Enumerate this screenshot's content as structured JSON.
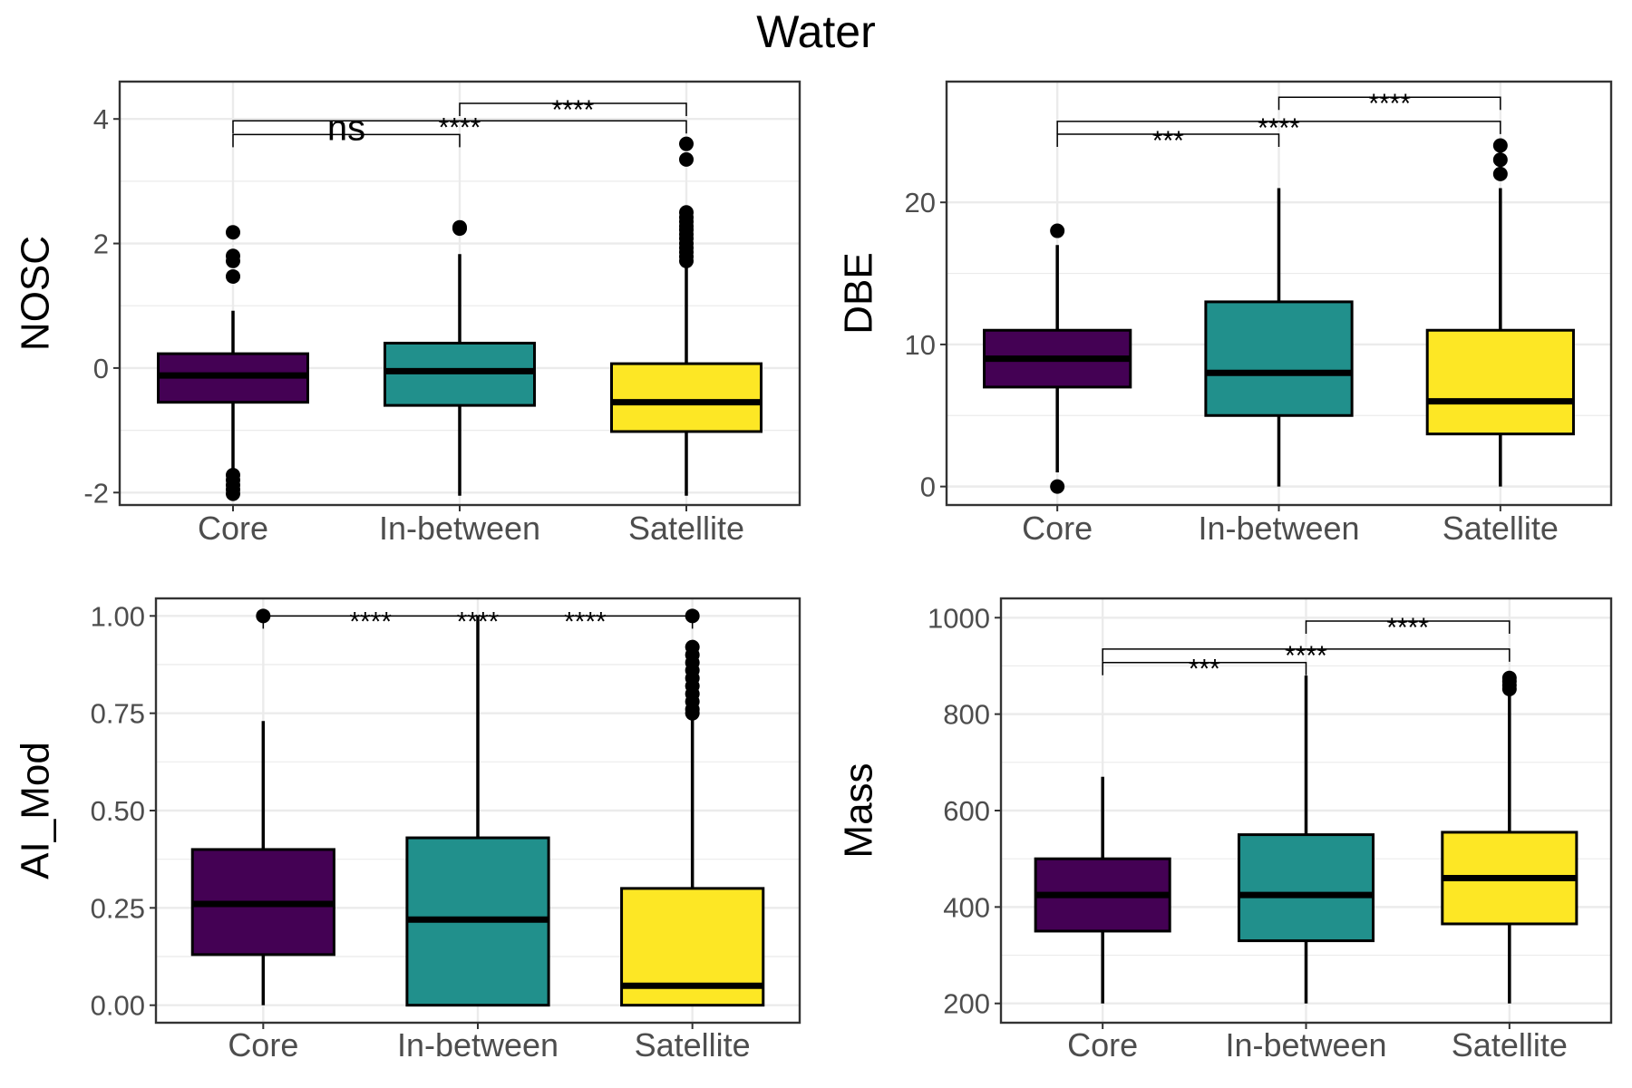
{
  "title": "Water",
  "colors": {
    "Core": "#440154",
    "In-between": "#21908C",
    "Satellite": "#FDE725",
    "grid": "#EBEBEB",
    "frame": "#333333"
  },
  "chart_data": [
    {
      "type": "boxplot",
      "ylabel": "NOSC",
      "xlabel": "",
      "categories": [
        "Core",
        "In-between",
        "Satellite"
      ],
      "ylim": [
        -2.2,
        4.6
      ],
      "yticks": [
        -2,
        0,
        2,
        4
      ],
      "ytick_labels": [
        "-2",
        "0",
        "2",
        "4"
      ],
      "grid": true,
      "boxes": [
        {
          "category": "Core",
          "q1": -0.55,
          "median": -0.12,
          "q3": 0.23,
          "whisker_low": -1.7,
          "whisker_high": 0.92,
          "outliers": [
            2.18,
            1.8,
            1.72,
            1.47,
            -1.72,
            -1.8,
            -1.88,
            -1.95,
            -2.02
          ]
        },
        {
          "category": "In-between",
          "q1": -0.6,
          "median": -0.05,
          "q3": 0.4,
          "whisker_low": -2.05,
          "whisker_high": 1.83,
          "outliers": [
            2.24,
            2.26
          ]
        },
        {
          "category": "Satellite",
          "q1": -1.02,
          "median": -0.55,
          "q3": 0.07,
          "whisker_low": -2.05,
          "whisker_high": 1.65,
          "outliers": [
            3.6,
            3.35,
            2.5,
            2.42,
            2.35,
            2.28,
            2.22,
            2.15,
            2.08,
            2.0,
            1.93,
            1.86,
            1.79,
            1.72
          ]
        }
      ],
      "comparisons": [
        {
          "from": "Core",
          "to": "In-between",
          "y": 3.75,
          "label": "ns",
          "big": true
        },
        {
          "from": "Core",
          "to": "Satellite",
          "y": 3.97,
          "label": "****"
        },
        {
          "from": "In-between",
          "to": "Satellite",
          "y": 4.25,
          "label": "****"
        }
      ]
    },
    {
      "type": "boxplot",
      "ylabel": "DBE",
      "xlabel": "",
      "categories": [
        "Core",
        "In-between",
        "Satellite"
      ],
      "ylim": [
        -1.3,
        28.5
      ],
      "yticks": [
        0,
        10,
        20
      ],
      "ytick_labels": [
        "0",
        "10",
        "20"
      ],
      "grid": true,
      "boxes": [
        {
          "category": "Core",
          "q1": 7,
          "median": 9,
          "q3": 11,
          "whisker_low": 1,
          "whisker_high": 17,
          "outliers": [
            18,
            0
          ]
        },
        {
          "category": "In-between",
          "q1": 5,
          "median": 8,
          "q3": 13,
          "whisker_low": 0,
          "whisker_high": 21,
          "outliers": []
        },
        {
          "category": "Satellite",
          "q1": 3.7,
          "median": 6,
          "q3": 11,
          "whisker_low": 0,
          "whisker_high": 21,
          "outliers": [
            24,
            23,
            22
          ]
        }
      ],
      "comparisons": [
        {
          "from": "Core",
          "to": "In-between",
          "y": 24.8,
          "label": "***"
        },
        {
          "from": "Core",
          "to": "Satellite",
          "y": 25.7,
          "label": "****"
        },
        {
          "from": "In-between",
          "to": "Satellite",
          "y": 27.4,
          "label": "****"
        }
      ]
    },
    {
      "type": "boxplot",
      "ylabel": "AI_Mod",
      "xlabel": "",
      "categories": [
        "Core",
        "In-between",
        "Satellite"
      ],
      "ylim": [
        -0.045,
        1.045
      ],
      "yticks": [
        0,
        0.25,
        0.5,
        0.75,
        1.0
      ],
      "ytick_labels": [
        "0.00",
        "0.25",
        "0.50",
        "0.75",
        "1.00"
      ],
      "grid": true,
      "boxes": [
        {
          "category": "Core",
          "q1": 0.13,
          "median": 0.26,
          "q3": 0.4,
          "whisker_low": 0,
          "whisker_high": 0.73,
          "outliers": [
            1.0
          ]
        },
        {
          "category": "In-between",
          "q1": 0,
          "median": 0.22,
          "q3": 0.43,
          "whisker_low": 0,
          "whisker_high": 1.0,
          "outliers": []
        },
        {
          "category": "Satellite",
          "q1": 0,
          "median": 0.05,
          "q3": 0.3,
          "whisker_low": 0,
          "whisker_high": 0.74,
          "outliers": [
            1.0,
            0.92,
            0.9,
            0.88,
            0.86,
            0.84,
            0.82,
            0.8,
            0.78,
            0.76,
            0.75
          ]
        }
      ],
      "comparisons": [
        {
          "from": "Core",
          "to": "Satellite",
          "y": 1.0,
          "label": "****",
          "label_cat": 0.5
        },
        {
          "from": "Core",
          "to": "Satellite",
          "y": 1.0,
          "label": "****",
          "label_cat": 1.0,
          "no_line": true
        },
        {
          "from": "Core",
          "to": "Satellite",
          "y": 1.0,
          "label": "****",
          "label_cat": 1.5,
          "no_line": true
        }
      ]
    },
    {
      "type": "boxplot",
      "ylabel": "Mass",
      "xlabel": "",
      "categories": [
        "Core",
        "In-between",
        "Satellite"
      ],
      "ylim": [
        160,
        1040
      ],
      "yticks": [
        200,
        400,
        600,
        800,
        1000
      ],
      "ytick_labels": [
        "200",
        "400",
        "600",
        "800",
        "1000"
      ],
      "grid": true,
      "boxes": [
        {
          "category": "Core",
          "q1": 350,
          "median": 425,
          "q3": 500,
          "whisker_low": 200,
          "whisker_high": 670,
          "outliers": []
        },
        {
          "category": "In-between",
          "q1": 330,
          "median": 425,
          "q3": 550,
          "whisker_low": 200,
          "whisker_high": 880,
          "outliers": []
        },
        {
          "category": "Satellite",
          "q1": 365,
          "median": 460,
          "q3": 555,
          "whisker_low": 200,
          "whisker_high": 850,
          "outliers": [
            875,
            868,
            860,
            852
          ]
        }
      ],
      "comparisons": [
        {
          "from": "Core",
          "to": "In-between",
          "y": 907,
          "label": "***"
        },
        {
          "from": "Core",
          "to": "Satellite",
          "y": 935,
          "label": "****"
        },
        {
          "from": "In-between",
          "to": "Satellite",
          "y": 993,
          "label": "****"
        }
      ]
    }
  ]
}
